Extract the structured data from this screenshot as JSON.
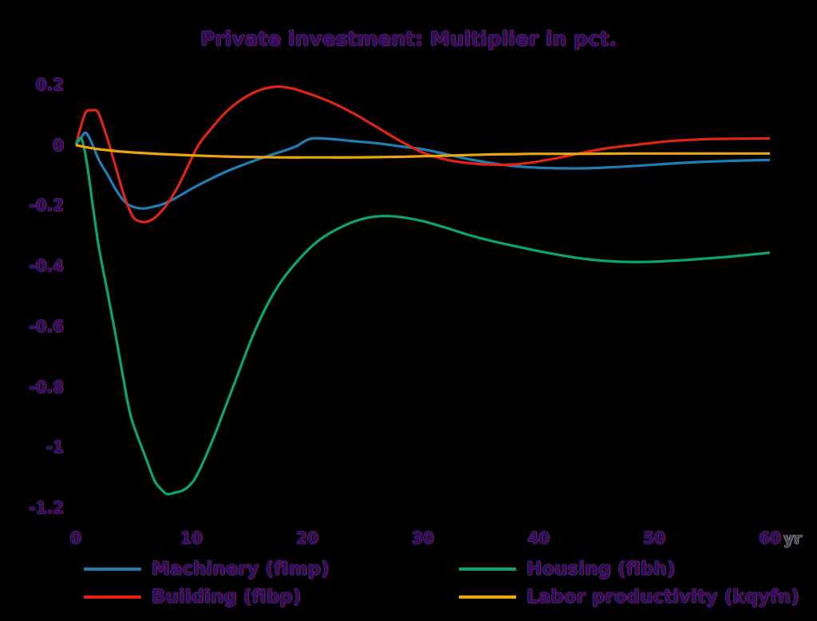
{
  "chart_data": {
    "type": "line",
    "title": "Private investment: Multiplier in pct.",
    "xlabel": "",
    "ylabel": "",
    "x_unit": "yr",
    "xlim": [
      0,
      60
    ],
    "ylim": [
      -1.2,
      0.2
    ],
    "x_tick_values": [
      0,
      10,
      20,
      30,
      40,
      50,
      60
    ],
    "x_tick_labels": [
      "0",
      "10",
      "20",
      "30",
      "40",
      "50",
      "60"
    ],
    "y_tick_values": [
      0.2,
      0,
      -0.2,
      -0.4,
      -0.6,
      -0.8,
      -1,
      -1.2
    ],
    "y_tick_labels": [
      "0.2",
      "0",
      "-0.2",
      "-0.4",
      "-0.6",
      "-0.8",
      "-1",
      "-1.2"
    ],
    "grid": false,
    "legend_position": "bottom",
    "colors": {
      "background": "#000000",
      "text": "#2f0e55"
    },
    "series": [
      {
        "id": "machinery",
        "name": "Machinery (fImp)",
        "color": "#1f7eb4",
        "points": [
          [
            0,
            0
          ],
          [
            0.5,
            0.028
          ],
          [
            0.9,
            0.04
          ],
          [
            1.4,
            0.005
          ],
          [
            2,
            -0.05
          ],
          [
            2.7,
            -0.095
          ],
          [
            3.5,
            -0.15
          ],
          [
            4.3,
            -0.19
          ],
          [
            5,
            -0.205
          ],
          [
            5.8,
            -0.21
          ],
          [
            6.6,
            -0.205
          ],
          [
            7.5,
            -0.196
          ],
          [
            8.5,
            -0.178
          ],
          [
            10,
            -0.145
          ],
          [
            11.5,
            -0.115
          ],
          [
            13,
            -0.088
          ],
          [
            14.5,
            -0.065
          ],
          [
            16,
            -0.044
          ],
          [
            17.5,
            -0.025
          ],
          [
            19,
            -0.005
          ],
          [
            20.3,
            0.021
          ],
          [
            22,
            0.02
          ],
          [
            24,
            0.013
          ],
          [
            26,
            0.006
          ],
          [
            28,
            -0.004
          ],
          [
            30,
            -0.014
          ],
          [
            32,
            -0.03
          ],
          [
            34,
            -0.047
          ],
          [
            36,
            -0.06
          ],
          [
            38,
            -0.07
          ],
          [
            40,
            -0.075
          ],
          [
            42,
            -0.077
          ],
          [
            44,
            -0.077
          ],
          [
            46,
            -0.074
          ],
          [
            48,
            -0.07
          ],
          [
            50,
            -0.065
          ],
          [
            52,
            -0.06
          ],
          [
            54,
            -0.056
          ],
          [
            56,
            -0.053
          ],
          [
            58,
            -0.051
          ],
          [
            60,
            -0.049
          ]
        ]
      },
      {
        "id": "building",
        "name": "Building (fIbp)",
        "color": "#e02417",
        "points": [
          [
            0,
            0
          ],
          [
            0.5,
            0.07
          ],
          [
            0.9,
            0.11
          ],
          [
            1.4,
            0.115
          ],
          [
            1.9,
            0.11
          ],
          [
            2.4,
            0.06
          ],
          [
            2.9,
            0
          ],
          [
            3.5,
            -0.08
          ],
          [
            4.2,
            -0.17
          ],
          [
            4.9,
            -0.235
          ],
          [
            5.5,
            -0.252
          ],
          [
            6.2,
            -0.253
          ],
          [
            7,
            -0.235
          ],
          [
            8,
            -0.19
          ],
          [
            9,
            -0.125
          ],
          [
            10,
            -0.045
          ],
          [
            10.6,
            0
          ],
          [
            11.5,
            0.045
          ],
          [
            13,
            0.11
          ],
          [
            14.5,
            0.155
          ],
          [
            16,
            0.183
          ],
          [
            17.3,
            0.193
          ],
          [
            18.6,
            0.188
          ],
          [
            20,
            0.172
          ],
          [
            22,
            0.143
          ],
          [
            24,
            0.105
          ],
          [
            26,
            0.06
          ],
          [
            27.5,
            0.025
          ],
          [
            28.7,
            0
          ],
          [
            30,
            -0.025
          ],
          [
            32,
            -0.048
          ],
          [
            34,
            -0.06
          ],
          [
            36,
            -0.065
          ],
          [
            38,
            -0.064
          ],
          [
            40,
            -0.054
          ],
          [
            42,
            -0.04
          ],
          [
            44,
            -0.024
          ],
          [
            46,
            -0.01
          ],
          [
            48.5,
            0.001
          ],
          [
            51,
            0.012
          ],
          [
            53,
            0.017
          ],
          [
            55,
            0.02
          ],
          [
            57,
            0.021
          ],
          [
            60,
            0.022
          ]
        ]
      },
      {
        "id": "housing",
        "name": "Housing (fIbh)",
        "color": "#0ba477",
        "points": [
          [
            0,
            0
          ],
          [
            0.5,
            0.02
          ],
          [
            1,
            -0.07
          ],
          [
            1.5,
            -0.21
          ],
          [
            2,
            -0.34
          ],
          [
            2.7,
            -0.48
          ],
          [
            3.4,
            -0.62
          ],
          [
            4.1,
            -0.77
          ],
          [
            4.7,
            -0.89
          ],
          [
            5.4,
            -0.97
          ],
          [
            6.1,
            -1.04
          ],
          [
            6.8,
            -1.11
          ],
          [
            7.4,
            -1.14
          ],
          [
            7.9,
            -1.155
          ],
          [
            8.6,
            -1.15
          ],
          [
            9.4,
            -1.14
          ],
          [
            10.2,
            -1.11
          ],
          [
            11,
            -1.05
          ],
          [
            12,
            -0.96
          ],
          [
            12.8,
            -0.88
          ],
          [
            14,
            -0.76
          ],
          [
            15.2,
            -0.64
          ],
          [
            16.4,
            -0.54
          ],
          [
            17.6,
            -0.46
          ],
          [
            18.8,
            -0.4
          ],
          [
            20,
            -0.35
          ],
          [
            21.2,
            -0.31
          ],
          [
            22.5,
            -0.28
          ],
          [
            24,
            -0.254
          ],
          [
            25.3,
            -0.24
          ],
          [
            26.5,
            -0.235
          ],
          [
            28,
            -0.238
          ],
          [
            30,
            -0.252
          ],
          [
            32,
            -0.274
          ],
          [
            34,
            -0.298
          ],
          [
            36,
            -0.318
          ],
          [
            38,
            -0.335
          ],
          [
            40,
            -0.351
          ],
          [
            42,
            -0.365
          ],
          [
            44,
            -0.377
          ],
          [
            46,
            -0.384
          ],
          [
            48,
            -0.387
          ],
          [
            50,
            -0.386
          ],
          [
            52,
            -0.382
          ],
          [
            54,
            -0.377
          ],
          [
            56,
            -0.371
          ],
          [
            58,
            -0.364
          ],
          [
            60,
            -0.356
          ]
        ]
      },
      {
        "id": "labor-productivity",
        "name": "Labor productivity (kqyfn)",
        "color": "#eaa511",
        "points": [
          [
            0,
            0
          ],
          [
            1,
            -0.008
          ],
          [
            2,
            -0.014
          ],
          [
            3,
            -0.018
          ],
          [
            4,
            -0.022
          ],
          [
            6,
            -0.027
          ],
          [
            8,
            -0.031
          ],
          [
            10,
            -0.034
          ],
          [
            12,
            -0.037
          ],
          [
            14,
            -0.039
          ],
          [
            16,
            -0.04
          ],
          [
            18,
            -0.041
          ],
          [
            20,
            -0.041
          ],
          [
            22,
            -0.041
          ],
          [
            24,
            -0.041
          ],
          [
            26,
            -0.04
          ],
          [
            28,
            -0.039
          ],
          [
            30,
            -0.037
          ],
          [
            32,
            -0.035
          ],
          [
            34,
            -0.033
          ],
          [
            36,
            -0.031
          ],
          [
            38,
            -0.03
          ],
          [
            40,
            -0.029
          ],
          [
            44,
            -0.029
          ],
          [
            48,
            -0.028
          ],
          [
            52,
            -0.028
          ],
          [
            56,
            -0.028
          ],
          [
            60,
            -0.028
          ]
        ]
      }
    ]
  }
}
